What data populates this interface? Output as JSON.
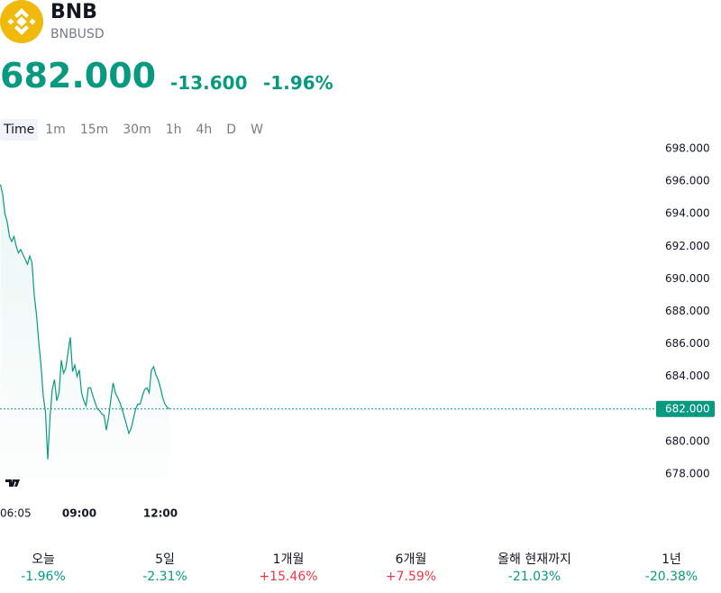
{
  "header": {
    "symbol": "BNB",
    "ticker": "BNBUSD",
    "price": "682.000",
    "change": "-13.600",
    "change_percent": "-1.96%"
  },
  "intervals": [
    "Time",
    "1m",
    "15m",
    "30m",
    "1h",
    "4h",
    "D",
    "W"
  ],
  "selected_interval": 0,
  "chart_data": {
    "type": "line",
    "color": "#089981",
    "categories": [
      "06:05",
      null,
      null,
      null,
      null,
      null,
      null,
      null,
      null,
      null,
      null,
      null,
      null,
      null,
      null,
      null,
      null,
      null,
      null,
      null,
      null,
      null,
      null,
      null,
      null,
      null,
      null,
      null,
      null,
      null,
      null,
      null,
      null,
      null,
      null,
      "09:00",
      null,
      null,
      null,
      null,
      null,
      null,
      null,
      null,
      null,
      null,
      null,
      null,
      null,
      null,
      null,
      null,
      null,
      null,
      null,
      null,
      null,
      null,
      null,
      null,
      null,
      null,
      null,
      null,
      null,
      null,
      null,
      null,
      null,
      null,
      null,
      "12:00",
      null,
      null,
      null,
      null
    ],
    "values": [
      695.8,
      695.2,
      694.0,
      693.5,
      692.6,
      692.3,
      692.6,
      692.0,
      691.6,
      691.8,
      691.5,
      691.2,
      690.9,
      691.4,
      691.0,
      689.0,
      687.8,
      686.1,
      684.7,
      682.8,
      681.8,
      678.9,
      681.5,
      683.2,
      683.8,
      682.5,
      683.0,
      685.0,
      684.2,
      684.5,
      685.5,
      686.4,
      684.3,
      684.7,
      684.0,
      684.4,
      683.0,
      682.5,
      682.2,
      683.3,
      683.3,
      682.8,
      682.4,
      682.0,
      681.9,
      681.7,
      681.6,
      680.7,
      681.5,
      682.6,
      683.6,
      683.0,
      682.7,
      682.4,
      682.0,
      681.5,
      681.0,
      680.5,
      680.8,
      681.4,
      682.0,
      682.3,
      682.3,
      682.8,
      683.2,
      683.3,
      683.0,
      684.4,
      684.6,
      684.1,
      683.8,
      683.3,
      682.7,
      682.3,
      682.1,
      682.0
    ],
    "ylim": [
      678,
      698
    ],
    "yticks": [
      {
        "value": 678,
        "label": "678.000"
      },
      {
        "value": 680,
        "label": "680.000"
      },
      {
        "value": 682,
        "label": "682.000"
      },
      {
        "value": 684,
        "label": "684.000"
      },
      {
        "value": 686,
        "label": "686.000"
      },
      {
        "value": 688,
        "label": "688.000"
      },
      {
        "value": 690,
        "label": "690.000"
      },
      {
        "value": 692,
        "label": "692.000"
      },
      {
        "value": 694,
        "label": "694.000"
      },
      {
        "value": 696,
        "label": "696.000"
      },
      {
        "value": 698,
        "label": "698.000"
      }
    ],
    "price_line": {
      "value": 682,
      "label": "682.000"
    }
  },
  "performance": [
    {
      "label": "오늘",
      "value": "-1.96%",
      "color": "#089981"
    },
    {
      "label": "5일",
      "value": "-2.31%",
      "color": "#089981"
    },
    {
      "label": "1개월",
      "value": "+15.46%",
      "color": "#f23645"
    },
    {
      "label": "6개월",
      "value": "+7.59%",
      "color": "#f23645"
    },
    {
      "label": "올해 현재까지",
      "value": "-21.03%",
      "color": "#089981"
    },
    {
      "label": "1년",
      "value": "-20.38%",
      "color": "#089981"
    }
  ]
}
